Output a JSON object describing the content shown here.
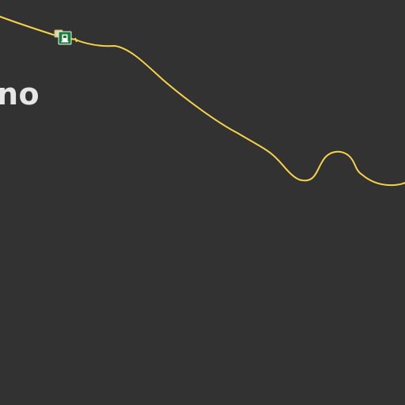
{
  "map": {
    "background_color": "#323232",
    "road": {
      "color": "#f6d24a",
      "type": "road"
    },
    "place_label": {
      "text": "no",
      "color": "#e6e6e6"
    },
    "poi": {
      "icon": "fuel-station-icon",
      "color": "#1c7c3c",
      "marker_color": "#e8d6a0"
    }
  }
}
